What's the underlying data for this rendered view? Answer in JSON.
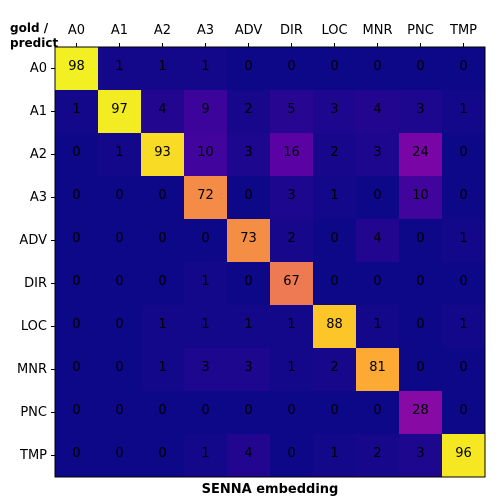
{
  "chart_data": {
    "type": "heatmap",
    "corner_label_lines": [
      "gold /",
      "predict"
    ],
    "xlabel": "SENNA embedding",
    "x_categories": [
      "A0",
      "A1",
      "A2",
      "A3",
      "ADV",
      "DIR",
      "LOC",
      "MNR",
      "PNC",
      "TMP"
    ],
    "y_categories": [
      "A0",
      "A1",
      "A2",
      "A3",
      "ADV",
      "DIR",
      "LOC",
      "MNR",
      "PNC",
      "TMP"
    ],
    "values": [
      [
        98,
        1,
        1,
        1,
        0,
        0,
        0,
        0,
        0,
        0
      ],
      [
        1,
        97,
        4,
        9,
        2,
        5,
        3,
        4,
        3,
        1
      ],
      [
        0,
        1,
        93,
        10,
        3,
        16,
        2,
        3,
        24,
        0
      ],
      [
        0,
        0,
        0,
        72,
        0,
        3,
        1,
        0,
        10,
        0
      ],
      [
        0,
        0,
        0,
        0,
        73,
        2,
        0,
        4,
        0,
        1
      ],
      [
        0,
        0,
        0,
        1,
        0,
        67,
        0,
        0,
        0,
        0
      ],
      [
        0,
        0,
        1,
        1,
        1,
        1,
        88,
        1,
        0,
        1
      ],
      [
        0,
        0,
        1,
        3,
        3,
        1,
        2,
        81,
        0,
        0
      ],
      [
        0,
        0,
        0,
        0,
        0,
        0,
        0,
        0,
        28,
        0
      ],
      [
        0,
        0,
        0,
        1,
        4,
        0,
        1,
        2,
        3,
        96
      ]
    ],
    "value_range": [
      0,
      100
    ],
    "colormap": "plasma",
    "x_tick_position": "top",
    "grid": false
  }
}
